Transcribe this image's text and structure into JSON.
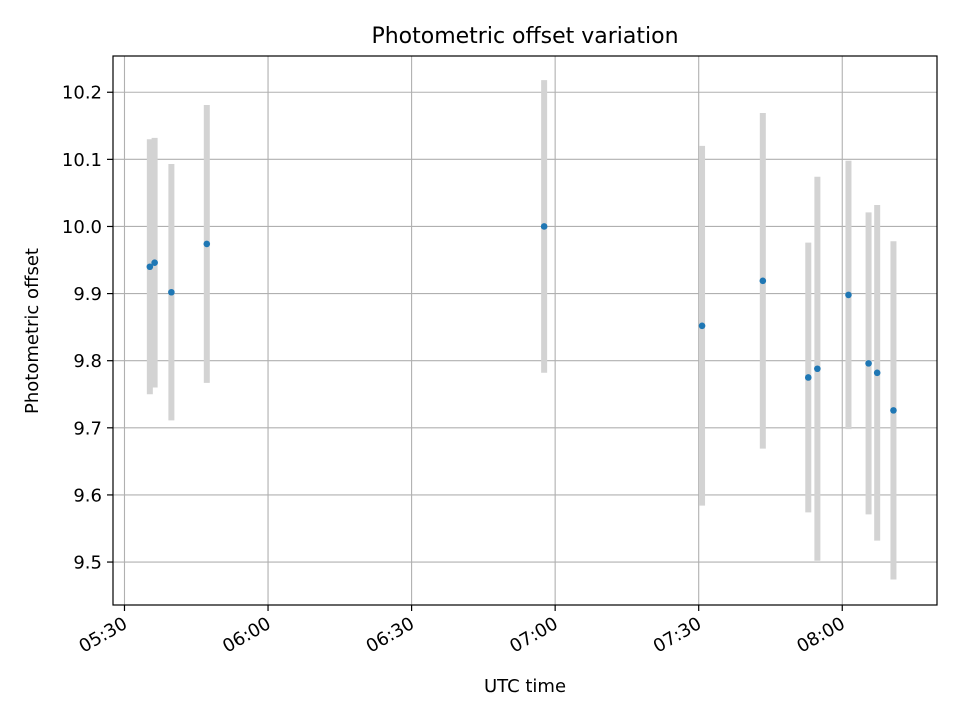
{
  "chart_data": {
    "type": "scatter",
    "title": "Photometric offset variation",
    "xlabel": "UTC time",
    "ylabel": "Photometric offset",
    "x_ticks": [
      "05:30",
      "06:00",
      "06:30",
      "07:00",
      "07:30",
      "08:00"
    ],
    "y_ticks": [
      "9.5",
      "9.6",
      "9.7",
      "9.8",
      "9.9",
      "10.0",
      "10.1",
      "10.2"
    ],
    "xlim": [
      "05:27:36",
      "08:19:48"
    ],
    "ylim": [
      9.436,
      10.254
    ],
    "grid": true,
    "series": [
      {
        "marker_color": "#1f77b4",
        "errorbar_color": "#d3d3d3",
        "points": [
          {
            "x": "05:35:18",
            "y": 9.94,
            "err": 0.19
          },
          {
            "x": "05:36:18",
            "y": 9.946,
            "err": 0.186
          },
          {
            "x": "05:39:48",
            "y": 9.902,
            "err": 0.191
          },
          {
            "x": "05:47:12",
            "y": 9.974,
            "err": 0.207
          },
          {
            "x": "06:57:42",
            "y": 10.0,
            "err": 0.218
          },
          {
            "x": "07:30:42",
            "y": 9.852,
            "err": 0.268
          },
          {
            "x": "07:43:24",
            "y": 9.919,
            "err": 0.25
          },
          {
            "x": "07:52:54",
            "y": 9.775,
            "err": 0.201
          },
          {
            "x": "07:54:48",
            "y": 9.788,
            "err": 0.286
          },
          {
            "x": "08:01:18",
            "y": 9.898,
            "err": 0.2
          },
          {
            "x": "08:05:30",
            "y": 9.796,
            "err": 0.225
          },
          {
            "x": "08:07:18",
            "y": 9.782,
            "err": 0.25
          },
          {
            "x": "08:10:42",
            "y": 9.726,
            "err": 0.252
          }
        ]
      }
    ]
  }
}
